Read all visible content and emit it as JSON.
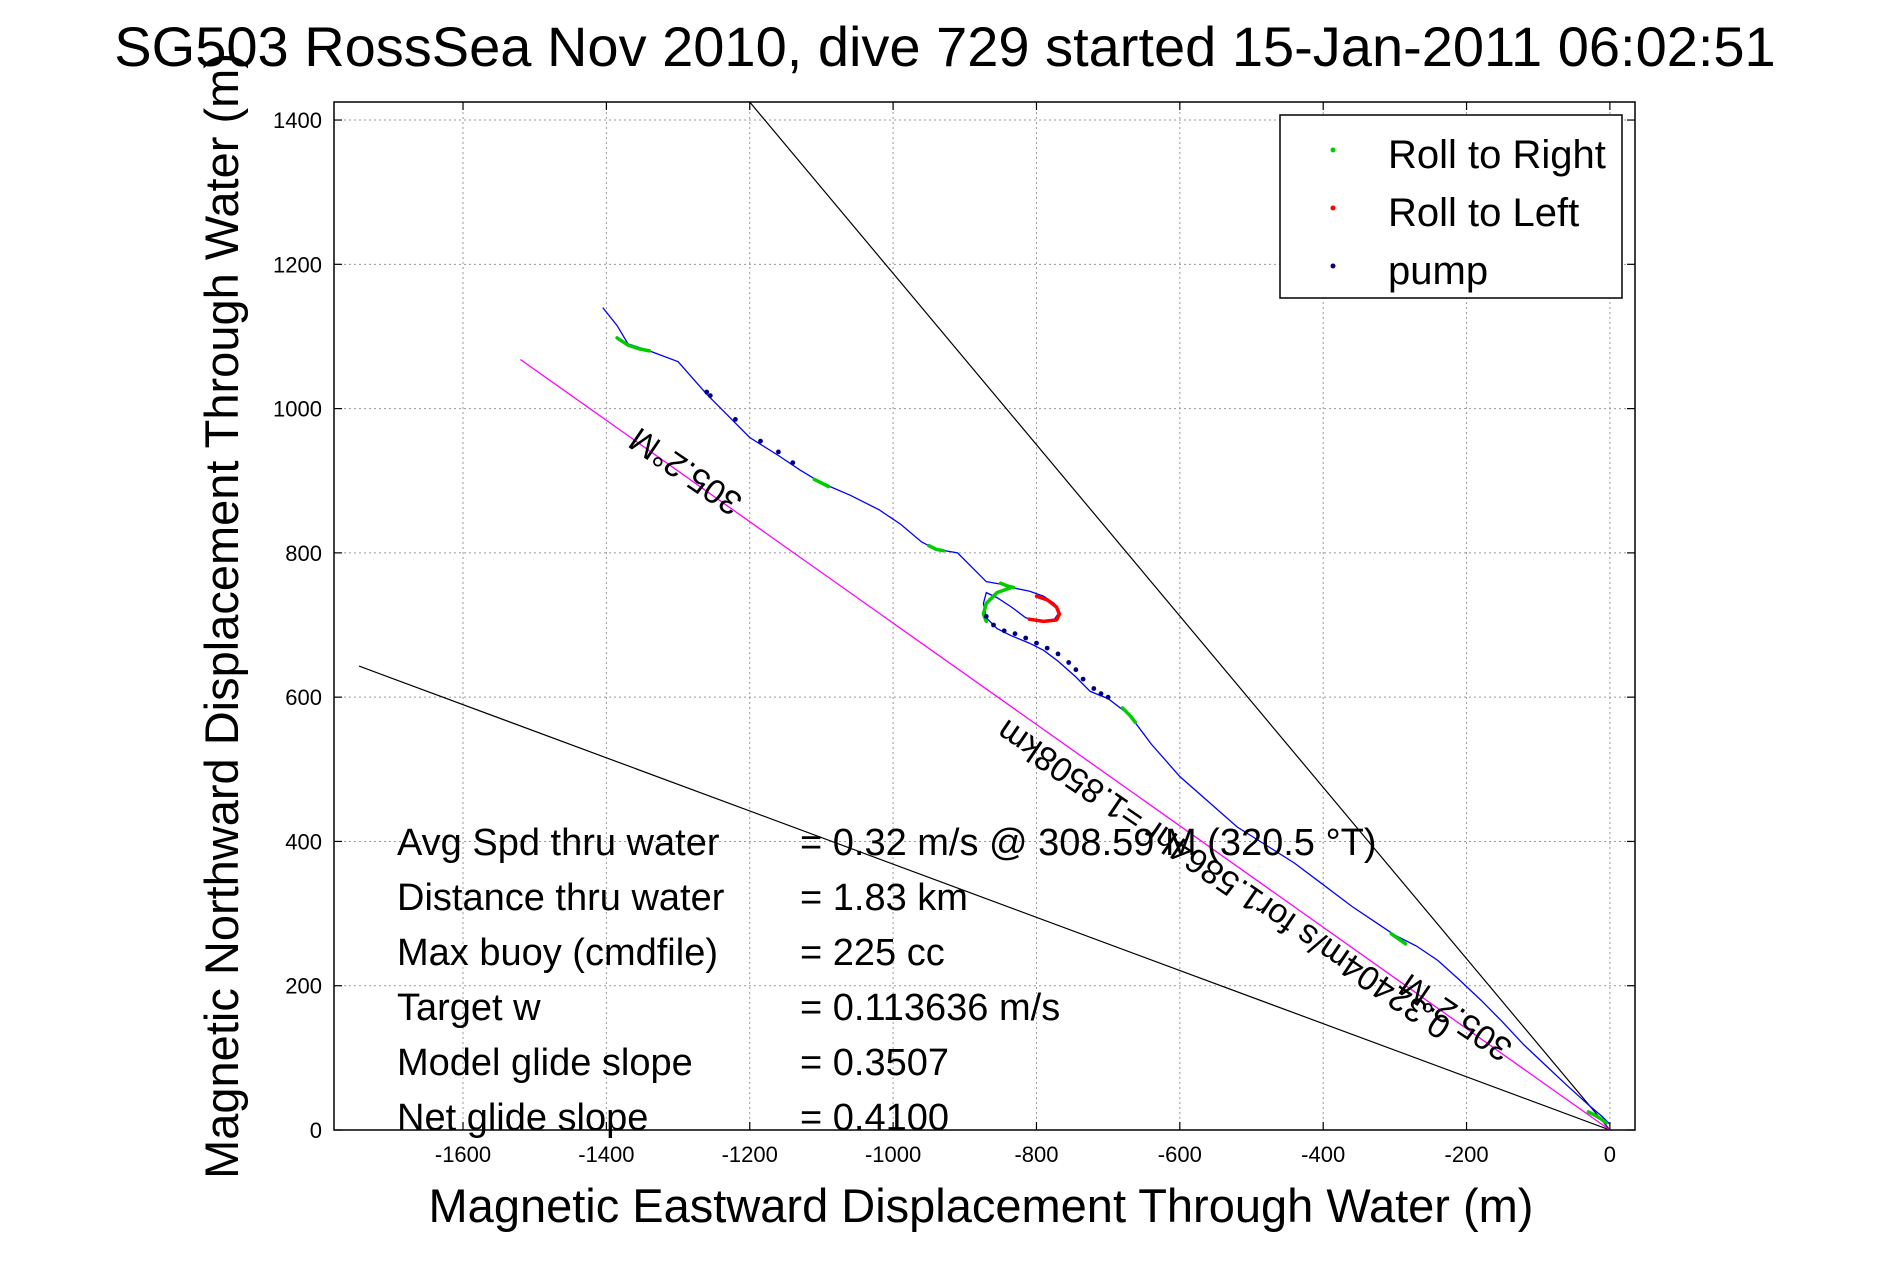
{
  "chart_data": {
    "type": "line",
    "title": "SG503 RossSea Nov 2010, dive 729 started 15-Jan-2011 06:02:51",
    "xlabel": "Magnetic Eastward Displacement Through Water (m)",
    "ylabel": "Magnetic Northward Displacement Through Water (m)",
    "xlim": [
      -1780,
      35
    ],
    "ylim": [
      0,
      1425
    ],
    "xticks": [
      -1600,
      -1400,
      -1200,
      -1000,
      -800,
      -600,
      -400,
      -200,
      0
    ],
    "yticks": [
      0,
      200,
      400,
      600,
      800,
      1000,
      1200,
      1400
    ],
    "grid": true,
    "legend_position": "top-right",
    "legend": [
      {
        "label": "Roll to Right",
        "color": "#00cc00"
      },
      {
        "label": "Roll to Left",
        "color": "#ff0000"
      },
      {
        "label": "pump",
        "color": "#000080"
      }
    ],
    "colors": {
      "track": "#0000ff",
      "course": "#ff00ff",
      "cone": "#000000",
      "roll_right": "#00cc00",
      "roll_left": "#ff0000",
      "pump": "#000080"
    },
    "track": {
      "x": [
        -1405,
        -1385,
        -1370,
        -1340,
        -1300,
        -1260,
        -1230,
        -1200,
        -1160,
        -1130,
        -1100,
        -1060,
        -1020,
        -990,
        -960,
        -940,
        -910,
        -890,
        -870,
        -852,
        -835,
        -810,
        -790,
        -775,
        -768,
        -775,
        -795,
        -815,
        -835,
        -855,
        -870,
        -874,
        -870,
        -855,
        -835,
        -810,
        -790,
        -770,
        -745,
        -725,
        -700,
        -670,
        -640,
        -600,
        -560,
        -520,
        -480,
        -440,
        -400,
        -360,
        -330,
        -300,
        -270,
        -240,
        -210,
        -180,
        -150,
        -120,
        -90,
        -60,
        -30,
        -10,
        0
      ],
      "y": [
        1140,
        1115,
        1090,
        1080,
        1065,
        1020,
        990,
        960,
        935,
        915,
        897,
        880,
        860,
        840,
        815,
        805,
        800,
        780,
        760,
        757,
        752,
        747,
        740,
        730,
        718,
        708,
        705,
        710,
        725,
        738,
        745,
        730,
        710,
        695,
        685,
        675,
        665,
        650,
        628,
        608,
        598,
        575,
        535,
        490,
        455,
        420,
        395,
        370,
        340,
        310,
        290,
        270,
        255,
        235,
        208,
        180,
        150,
        118,
        90,
        62,
        35,
        18,
        8
      ]
    },
    "roll_right": [
      {
        "x": [
          -1385,
          -1370,
          -1355,
          -1340
        ],
        "y": [
          1098,
          1088,
          1083,
          1080
        ]
      },
      {
        "x": [
          -1110,
          -1100,
          -1090
        ],
        "y": [
          902,
          897,
          892
        ]
      },
      {
        "x": [
          -950,
          -940,
          -930
        ],
        "y": [
          810,
          805,
          803
        ]
      },
      {
        "x": [
          -850,
          -840,
          -832
        ],
        "y": [
          758,
          754,
          752
        ]
      },
      {
        "x": [
          -835,
          -855,
          -870,
          -874,
          -870
        ],
        "y": [
          752,
          745,
          730,
          715,
          705
        ]
      },
      {
        "x": [
          -680,
          -670,
          -662
        ],
        "y": [
          585,
          575,
          565
        ]
      },
      {
        "x": [
          -305,
          -295,
          -285
        ],
        "y": [
          272,
          265,
          258
        ]
      },
      {
        "x": [
          -30,
          -20,
          -12,
          -5
        ],
        "y": [
          25,
          20,
          15,
          10
        ]
      }
    ],
    "roll_left": [
      {
        "x": [
          -800,
          -785,
          -772,
          -768,
          -772,
          -790,
          -810
        ],
        "y": [
          740,
          735,
          725,
          715,
          707,
          705,
          708
        ]
      }
    ],
    "pump": {
      "x": [
        -1260,
        -1255,
        -1220,
        -1185,
        -1160,
        -1140,
        -870,
        -860,
        -845,
        -830,
        -815,
        -800,
        -785,
        -770,
        -755,
        -745,
        -735,
        -720,
        -710,
        -700
      ],
      "y": [
        1023,
        1018,
        985,
        955,
        940,
        925,
        712,
        700,
        692,
        688,
        682,
        675,
        668,
        660,
        648,
        638,
        625,
        612,
        605,
        600
      ]
    },
    "course_line": {
      "x": [
        -1520,
        0
      ],
      "y": [
        1068,
        0
      ]
    },
    "cone_lines": [
      {
        "x": [
          -1745,
          0
        ],
        "y": [
          643,
          0
        ]
      },
      {
        "x": [
          -1200,
          0
        ],
        "y": [
          1425,
          0
        ]
      }
    ],
    "annotations": {
      "heading_top": "305.2°M",
      "heading_bottom": "305.2°M",
      "course": "0.32404m/s for1.5864hr =1.8508km"
    },
    "stats": [
      {
        "label": "Avg Spd thru water",
        "value": "=  0.32 m/s @ 308.59 M (320.5 °T)"
      },
      {
        "label": "Distance thru water",
        "value": "=  1.83 km"
      },
      {
        "label": "Max buoy (cmdfile)",
        "value": "= 225 cc"
      },
      {
        "label": "Target w",
        "value": "= 0.113636 m/s"
      },
      {
        "label": "Model glide slope",
        "value": "= 0.3507"
      },
      {
        "label": "Net glide slope",
        "value": "= 0.4100"
      }
    ]
  }
}
